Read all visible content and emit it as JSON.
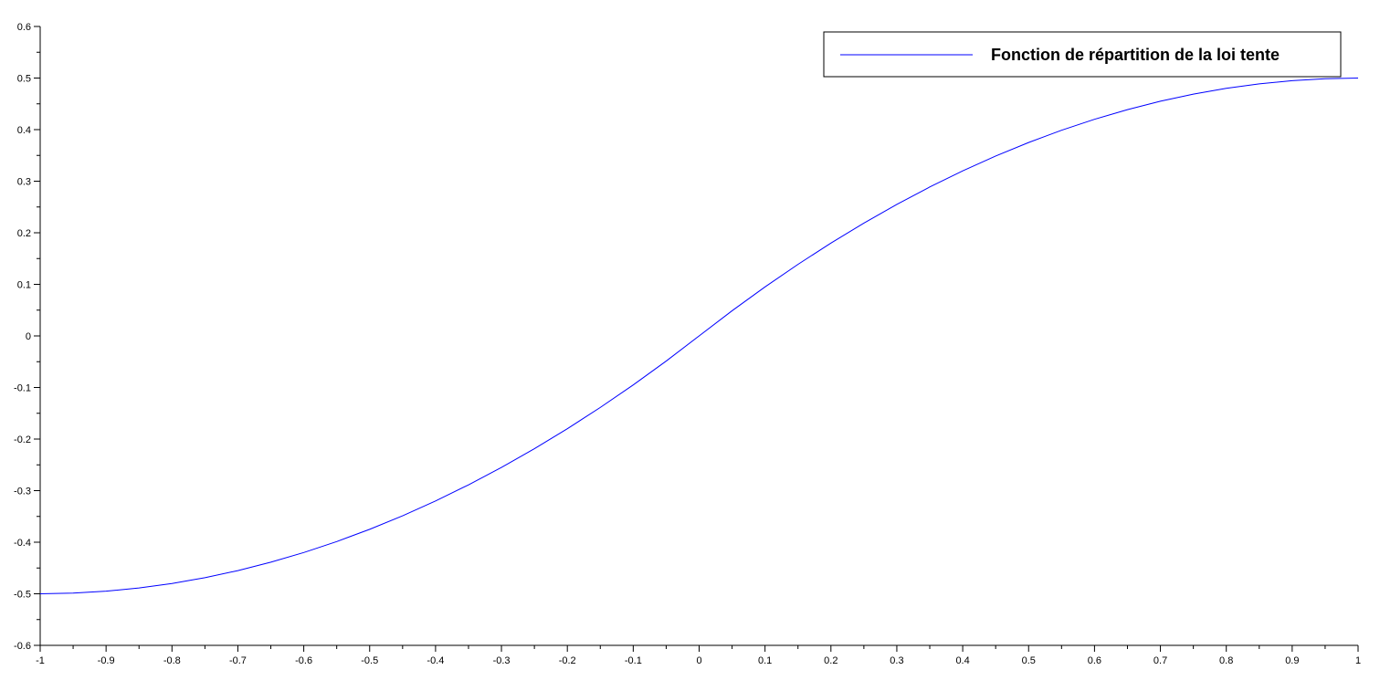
{
  "chart_data": {
    "type": "line",
    "title": "",
    "xlabel": "",
    "ylabel": "",
    "xlim": [
      -1,
      1
    ],
    "ylim": [
      -0.6,
      0.6
    ],
    "grid": false,
    "legend_position": "top-right",
    "x_ticks": [
      "-1",
      "-0.9",
      "-0.8",
      "-0.7",
      "-0.6",
      "-0.5",
      "-0.4",
      "-0.3",
      "-0.2",
      "-0.1",
      "0",
      "0.1",
      "0.2",
      "0.3",
      "0.4",
      "0.5",
      "0.6",
      "0.7",
      "0.8",
      "0.9",
      "1"
    ],
    "y_ticks": [
      "-0.6",
      "-0.5",
      "-0.4",
      "-0.3",
      "-0.2",
      "-0.1",
      "0",
      "0.1",
      "0.2",
      "0.3",
      "0.4",
      "0.5",
      "0.6"
    ],
    "series": [
      {
        "name": "Fonction de répartition de la loi tente",
        "color": "#0000ff",
        "x": [
          -1,
          -0.95,
          -0.9,
          -0.85,
          -0.8,
          -0.75,
          -0.7,
          -0.65,
          -0.6,
          -0.55,
          -0.5,
          -0.45,
          -0.4,
          -0.35,
          -0.3,
          -0.25,
          -0.2,
          -0.15,
          -0.1,
          -0.05,
          0,
          0.05,
          0.1,
          0.15,
          0.2,
          0.25,
          0.3,
          0.35,
          0.4,
          0.45,
          0.5,
          0.55,
          0.6,
          0.65,
          0.7,
          0.75,
          0.8,
          0.85,
          0.9,
          0.95,
          1
        ],
        "y": [
          -0.5,
          -0.49875,
          -0.495,
          -0.48875,
          -0.48,
          -0.46875,
          -0.455,
          -0.43875,
          -0.42,
          -0.39875,
          -0.375,
          -0.34875,
          -0.32,
          -0.28875,
          -0.255,
          -0.21875,
          -0.18,
          -0.13875,
          -0.095,
          -0.04875,
          0,
          0.04875,
          0.095,
          0.13875,
          0.18,
          0.21875,
          0.255,
          0.28875,
          0.32,
          0.34875,
          0.375,
          0.39875,
          0.42,
          0.43875,
          0.455,
          0.46875,
          0.48,
          0.48875,
          0.495,
          0.49875,
          0.5
        ]
      }
    ]
  }
}
